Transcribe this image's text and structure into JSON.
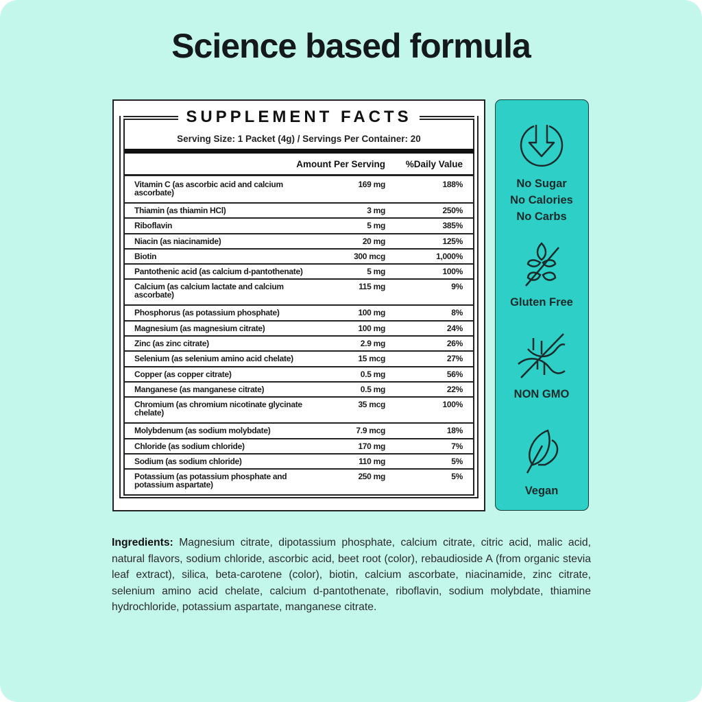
{
  "title": "Science based formula",
  "facts": {
    "heading": "SUPPLEMENT FACTS",
    "serving": "Serving Size: 1 Packet (4g) / Servings Per Container: 20",
    "col_amount": "Amount Per Serving",
    "col_dv": "%Daily Value",
    "rows": [
      {
        "name": "Vitamin C (as ascorbic acid and calcium ascorbate)",
        "amount": "169 mg",
        "dv": "188%"
      },
      {
        "name": "Thiamin (as thiamin HCl)",
        "amount": "3 mg",
        "dv": "250%"
      },
      {
        "name": "Riboflavin",
        "amount": "5 mg",
        "dv": "385%"
      },
      {
        "name": "Niacin (as niacinamide)",
        "amount": "20 mg",
        "dv": "125%"
      },
      {
        "name": "Biotin",
        "amount": "300 mcg",
        "dv": "1,000%"
      },
      {
        "name": "Pantothenic acid (as calcium d-pantothenate)",
        "amount": "5 mg",
        "dv": "100%"
      },
      {
        "name": "Calcium (as calcium lactate and calcium ascorbate)",
        "amount": "115 mg",
        "dv": "9%"
      },
      {
        "name": "Phosphorus (as potassium phosphate)",
        "amount": "100 mg",
        "dv": "8%"
      },
      {
        "name": "Magnesium (as magnesium citrate)",
        "amount": "100 mg",
        "dv": "24%"
      },
      {
        "name": "Zinc (as zinc citrate)",
        "amount": "2.9 mg",
        "dv": "26%"
      },
      {
        "name": "Selenium (as selenium amino acid chelate)",
        "amount": "15 mcg",
        "dv": "27%"
      },
      {
        "name": "Copper (as copper citrate)",
        "amount": "0.5 mg",
        "dv": "56%"
      },
      {
        "name": "Manganese (as manganese citrate)",
        "amount": "0.5 mg",
        "dv": "22%"
      },
      {
        "name": "Chromium (as chromium nicotinate glycinate chelate)",
        "amount": "35 mcg",
        "dv": "100%"
      },
      {
        "name": "Molybdenum (as sodium molybdate)",
        "amount": "7.9 mcg",
        "dv": "18%"
      },
      {
        "name": "Chloride (as sodium chloride)",
        "amount": "170 mg",
        "dv": "7%"
      },
      {
        "name": "Sodium (as sodium chloride)",
        "amount": "110 mg",
        "dv": "5%"
      },
      {
        "name": "Potassium (as potassium phosphate and potassium aspartate)",
        "amount": "250 mg",
        "dv": "5%"
      }
    ]
  },
  "badges": [
    {
      "icon": "down-arrow-circle-icon",
      "lines": [
        "No Sugar",
        "No Calories",
        "No Carbs"
      ]
    },
    {
      "icon": "no-wheat-icon",
      "lines": [
        "Gluten Free"
      ]
    },
    {
      "icon": "no-dna-icon",
      "lines": [
        "NON GMO"
      ]
    },
    {
      "icon": "leaf-icon",
      "lines": [
        "Vegan"
      ]
    }
  ],
  "ingredients": {
    "label": "Ingredients:",
    "text": " Magnesium citrate, dipotassium phosphate, calcium citrate, citric acid, malic acid, natural flavors, sodium chloride, ascorbic acid, beet root (color), rebaudioside A (from organic stevia leaf extract), silica, beta-carotene (color), biotin, calcium ascorbate, niacinamide, zinc citrate, selenium amino acid chelate, calcium d-pantothenate, riboflavin, sodium molybdate, thiamine hydrochloride, potassium aspartate, manganese citrate."
  },
  "colors": {
    "background": "#c4f7ec",
    "panel": "#2ecfc6",
    "text": "#141a1c"
  }
}
